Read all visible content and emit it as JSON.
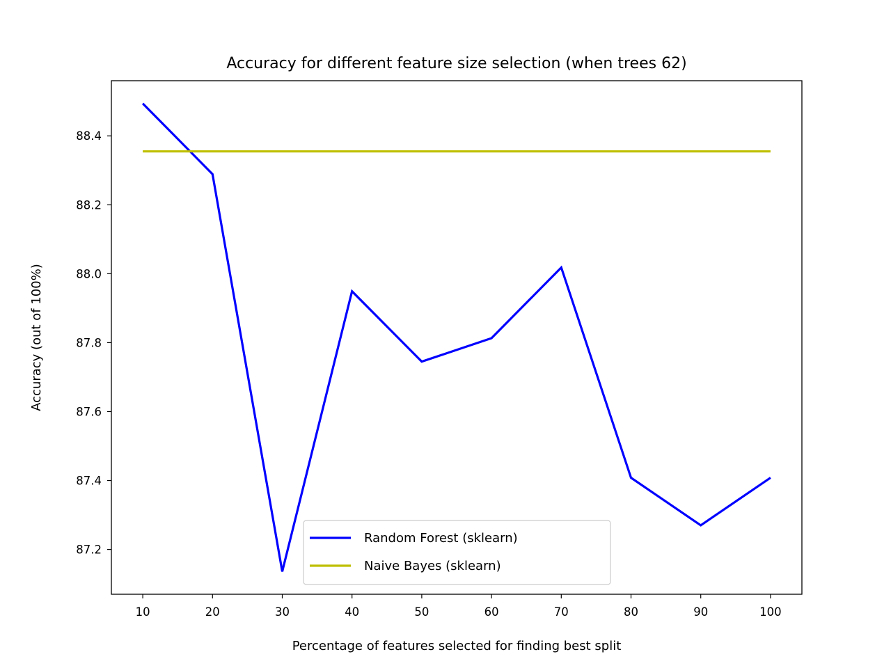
{
  "chart_data": {
    "type": "line",
    "title": "Accuracy for different feature size selection (when trees 62)",
    "xlabel": "Percentage of features selected for finding best split",
    "ylabel": "Accuracy (out of 100%)",
    "x": [
      10,
      20,
      30,
      40,
      50,
      60,
      70,
      80,
      90,
      100
    ],
    "x_ticks": [
      "10",
      "20",
      "30",
      "40",
      "50",
      "60",
      "70",
      "80",
      "90",
      "100"
    ],
    "y_ticks": [
      "87.2",
      "87.4",
      "87.6",
      "87.8",
      "88.0",
      "88.2",
      "88.4"
    ],
    "xlim": [
      5.5,
      104.5
    ],
    "ylim": [
      87.07,
      88.56
    ],
    "grid": false,
    "legend_position": "lower-center",
    "series": [
      {
        "name": "Random Forest (sklearn)",
        "color": "#0000ff",
        "values": [
          88.494,
          88.289,
          87.136,
          87.949,
          87.745,
          87.813,
          88.018,
          87.408,
          87.27,
          87.408
        ]
      },
      {
        "name": "Naive Bayes (sklearn)",
        "color": "#bfbf00",
        "values": [
          88.355,
          88.355,
          88.355,
          88.355,
          88.355,
          88.355,
          88.355,
          88.355,
          88.355,
          88.355
        ]
      }
    ]
  }
}
